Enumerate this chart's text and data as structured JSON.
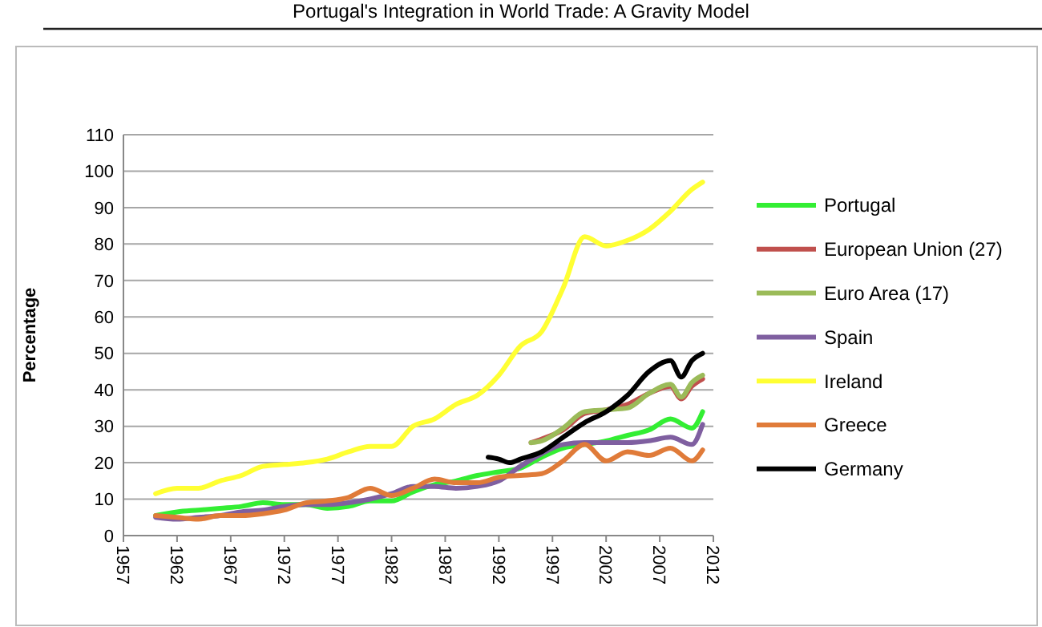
{
  "chart_data": {
    "type": "line",
    "ylabel": "Percentage",
    "annotations": [
      "Portugal's Integration in World Trade: A Gravity Model"
    ],
    "x": [
      1960,
      1962,
      1964,
      1966,
      1968,
      1970,
      1972,
      1974,
      1976,
      1978,
      1980,
      1982,
      1984,
      1986,
      1988,
      1990,
      1992,
      1994,
      1996,
      1998,
      2000,
      2002,
      2004,
      2006,
      2008,
      2010,
      2011
    ],
    "xlim": [
      1957,
      2012
    ],
    "xticks": [
      1957,
      1962,
      1967,
      1972,
      1977,
      1982,
      1987,
      1992,
      1997,
      2002,
      2007,
      2012
    ],
    "ylim": [
      0,
      110
    ],
    "yticks": [
      0,
      10,
      20,
      30,
      40,
      50,
      60,
      70,
      80,
      90,
      100,
      110
    ],
    "grid": "y",
    "legend": "right",
    "marker": "none",
    "line_style": "solid",
    "series": [
      {
        "name": "Portugal",
        "color": "#33ee33",
        "values": [
          5.5,
          6.5,
          7,
          7.5,
          8,
          9,
          8.5,
          8.5,
          7.5,
          8,
          9.5,
          9.5,
          12,
          14,
          15,
          16.5,
          17.5,
          18.5,
          21.5,
          24,
          25,
          26,
          27.5,
          29,
          32,
          29.5,
          34
        ]
      },
      {
        "name": "European Union (27)",
        "color": "#c0504d",
        "x": [
          1995,
          1996,
          1998,
          2000,
          2002,
          2004,
          2006,
          2008,
          2009,
          2010,
          2011
        ],
        "values": [
          25.5,
          26.5,
          29,
          33.5,
          34.5,
          36,
          39,
          41,
          37.5,
          41,
          43
        ]
      },
      {
        "name": "Euro Area (17)",
        "color": "#9bbb59",
        "x": [
          1995,
          1996,
          1998,
          2000,
          2002,
          2004,
          2006,
          2008,
          2009,
          2010,
          2011
        ],
        "values": [
          25.5,
          26,
          29.5,
          34,
          34.5,
          35,
          39,
          41.5,
          38,
          42,
          44
        ]
      },
      {
        "name": "Spain",
        "color": "#7f5fa0",
        "values": [
          5,
          4.5,
          5,
          5.5,
          6.5,
          7,
          8,
          8.5,
          8.5,
          9,
          10,
          11.5,
          13.5,
          13.5,
          13,
          13.5,
          15,
          19,
          22.5,
          25,
          25.5,
          25.5,
          25.5,
          26,
          27,
          25,
          30.5
        ]
      },
      {
        "name": "Ireland",
        "color": "#ffff33",
        "values": [
          11.5,
          13,
          13,
          15,
          16.5,
          19,
          19.5,
          20,
          21,
          23,
          24.5,
          24.5,
          30,
          32,
          36,
          38.5,
          44,
          52,
          56,
          68,
          82,
          79.5,
          81,
          84,
          89,
          95,
          97
        ]
      },
      {
        "name": "Greece",
        "color": "#e07b39",
        "values": [
          5.5,
          5,
          4.5,
          5.5,
          5.5,
          6,
          7,
          9,
          9.5,
          10.5,
          13,
          11,
          13,
          15.5,
          14.5,
          14.5,
          16,
          16.5,
          17,
          20.5,
          25,
          20.5,
          23,
          22,
          24,
          20.5,
          23.5
        ]
      },
      {
        "name": "Germany",
        "color": "#000000",
        "x": [
          1991,
          1992,
          1993,
          1994,
          1996,
          1998,
          2000,
          2002,
          2004,
          2006,
          2008,
          2009,
          2010,
          2011
        ],
        "values": [
          21.5,
          21,
          20,
          21,
          23,
          27,
          31,
          34,
          38.5,
          45,
          48,
          43.5,
          48,
          50
        ]
      }
    ]
  }
}
